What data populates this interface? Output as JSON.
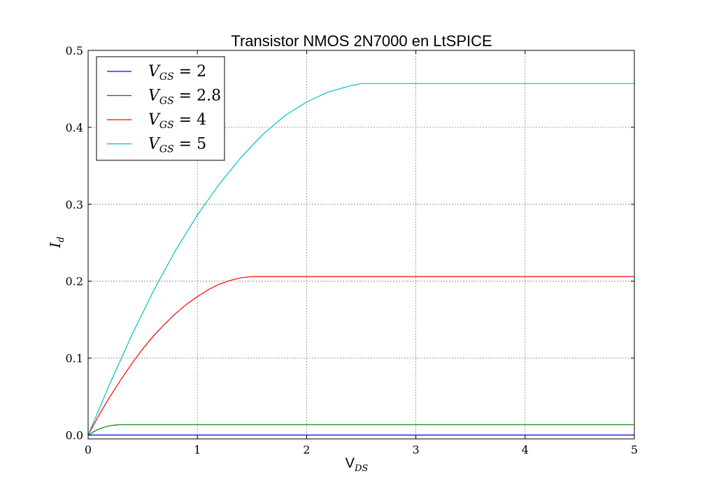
{
  "chart_data": {
    "type": "line",
    "title": "Transistor NMOS 2N7000 en LtSPICE",
    "xlabel": "V",
    "xlabel_sub": "DS",
    "ylabel": "I",
    "ylabel_sub": "d",
    "xlim": [
      0,
      5
    ],
    "ylim": [
      -0.005,
      0.5
    ],
    "x_ticks": [
      0,
      1,
      2,
      3,
      4,
      5
    ],
    "x_tick_labels": [
      "0",
      "1",
      "2",
      "3",
      "4",
      "5"
    ],
    "y_ticks": [
      0.0,
      0.1,
      0.2,
      0.3,
      0.4,
      0.5
    ],
    "y_tick_labels": [
      "0.0",
      "0.1",
      "0.2",
      "0.3",
      "0.4",
      "0.5"
    ],
    "grid": true,
    "legend_position": "top-left",
    "series": [
      {
        "name": "V_GS = 2",
        "legend_var": "V",
        "legend_sub": "GS",
        "legend_rhs": " = 2",
        "color": "#0000ff",
        "x": [
          0,
          0.5,
          1,
          1.5,
          2,
          2.5,
          3,
          3.5,
          4,
          4.5,
          5
        ],
        "y": [
          0,
          0,
          0,
          0,
          0,
          0,
          0,
          0,
          0,
          0,
          0
        ]
      },
      {
        "name": "V_GS = 2.8",
        "legend_var": "V",
        "legend_sub": "GS",
        "legend_rhs": " = 2.8",
        "color": "#008000",
        "x": [
          0,
          0.05,
          0.1,
          0.15,
          0.2,
          0.25,
          0.3,
          0.35,
          0.5,
          1,
          1.5,
          2,
          2.5,
          3,
          3.5,
          4,
          4.5,
          5
        ],
        "y": [
          0,
          0.0043,
          0.0078,
          0.0104,
          0.0121,
          0.0131,
          0.0135,
          0.0135,
          0.0135,
          0.0135,
          0.0135,
          0.0135,
          0.0135,
          0.0135,
          0.0135,
          0.0135,
          0.0135,
          0.0135
        ]
      },
      {
        "name": "V_GS = 4",
        "legend_var": "V",
        "legend_sub": "GS",
        "legend_rhs": " = 4",
        "color": "#ff0000",
        "x": [
          0,
          0.1,
          0.2,
          0.3,
          0.4,
          0.5,
          0.6,
          0.7,
          0.8,
          0.9,
          1.0,
          1.1,
          1.2,
          1.3,
          1.4,
          1.5,
          1.6,
          2,
          2.5,
          3,
          3.5,
          4,
          4.5,
          5
        ],
        "y": [
          0,
          0.026,
          0.05,
          0.072,
          0.093,
          0.112,
          0.129,
          0.144,
          0.158,
          0.17,
          0.18,
          0.189,
          0.196,
          0.201,
          0.2045,
          0.206,
          0.206,
          0.206,
          0.206,
          0.206,
          0.206,
          0.206,
          0.206,
          0.206
        ]
      },
      {
        "name": "V_GS = 5",
        "legend_var": "V",
        "legend_sub": "GS",
        "legend_rhs": " = 5",
        "color": "#00bfbf",
        "x": [
          0,
          0.2,
          0.4,
          0.6,
          0.8,
          1.0,
          1.2,
          1.4,
          1.6,
          1.8,
          2.0,
          2.2,
          2.4,
          2.5,
          2.6,
          3,
          3.5,
          4,
          4.5,
          5
        ],
        "y": [
          0,
          0.067,
          0.13,
          0.188,
          0.24,
          0.286,
          0.326,
          0.361,
          0.391,
          0.415,
          0.433,
          0.446,
          0.454,
          0.457,
          0.457,
          0.457,
          0.457,
          0.457,
          0.457,
          0.457
        ]
      }
    ]
  }
}
